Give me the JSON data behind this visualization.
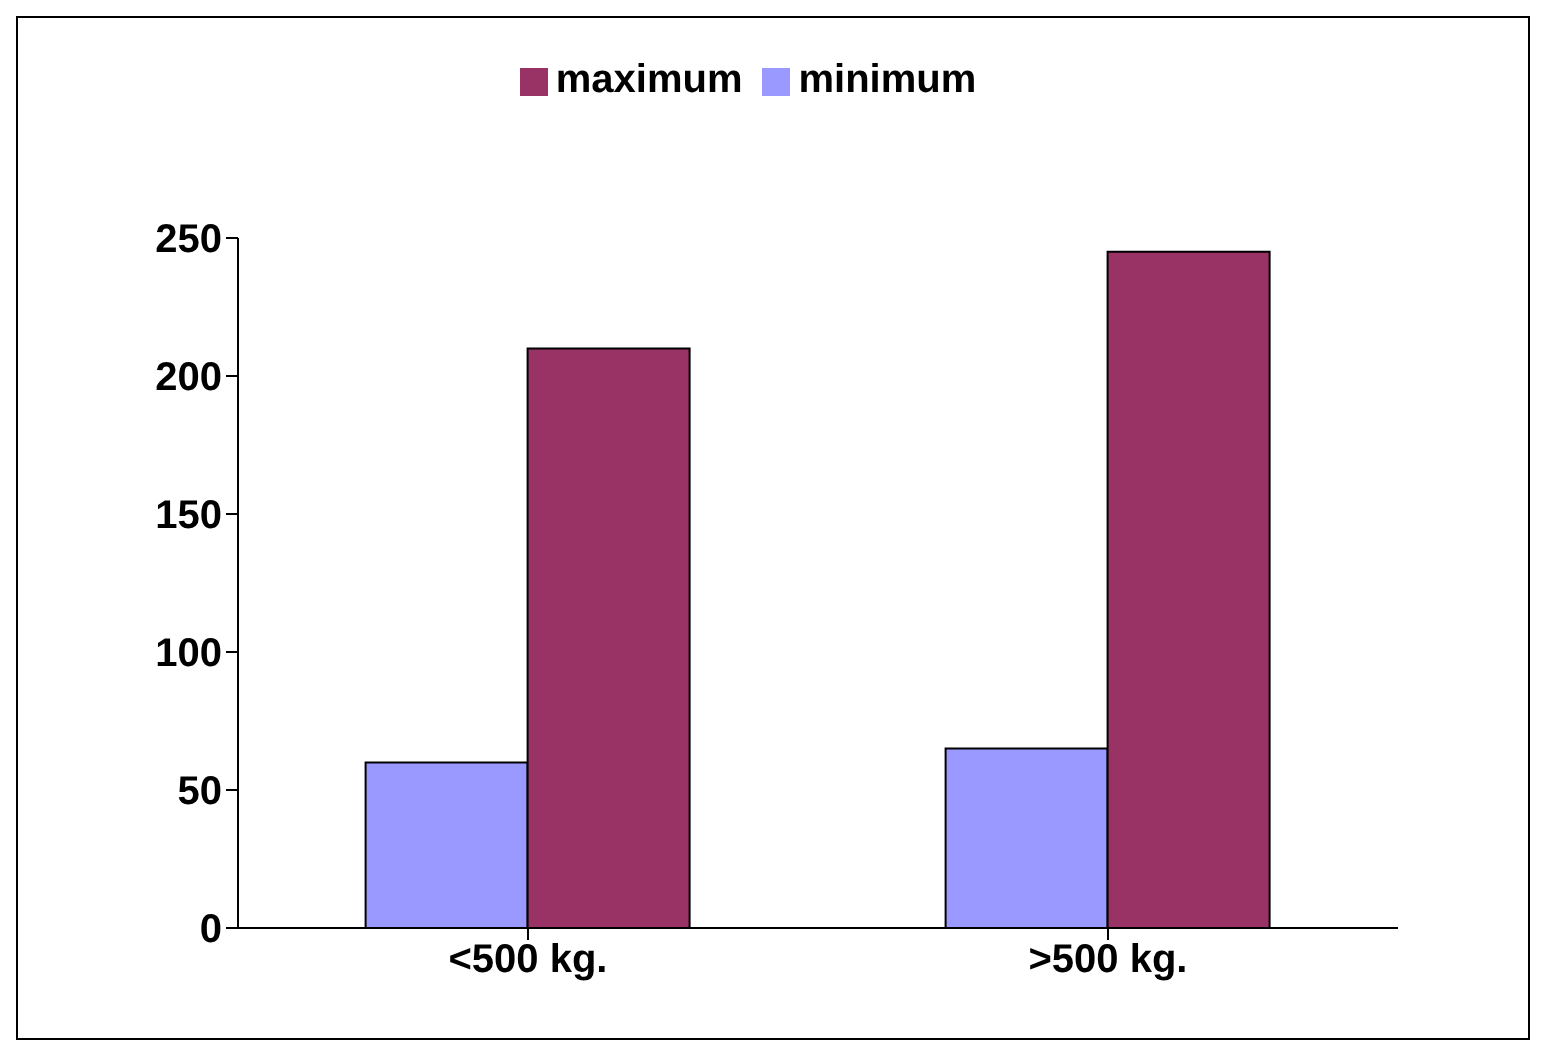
{
  "chart_data": {
    "type": "bar",
    "categories": [
      "<500 kg.",
      ">500 kg."
    ],
    "series": [
      {
        "name": "minimum",
        "color": "#9999ff",
        "values": [
          60,
          65
        ]
      },
      {
        "name": "maximum",
        "color": "#993366",
        "values": [
          210,
          245
        ]
      }
    ],
    "ylim": [
      0,
      250
    ],
    "yticks": [
      0,
      50,
      100,
      150,
      200,
      250
    ],
    "grid": false,
    "legend": "top"
  }
}
